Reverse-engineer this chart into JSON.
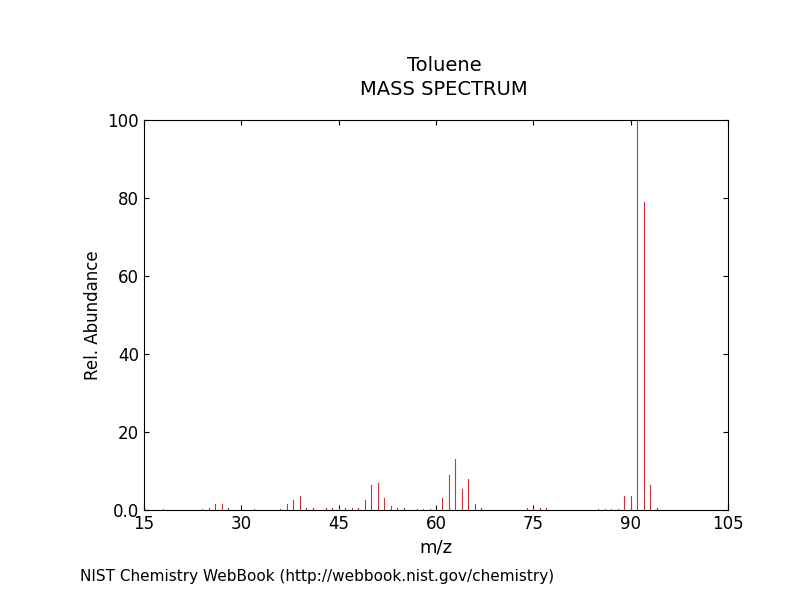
{
  "title_line1": "Toluene",
  "title_line2": "MASS SPECTRUM",
  "xlabel": "m/z",
  "ylabel": "Rel. Abundance",
  "footnote": "NIST Chemistry WebBook (http://webbook.nist.gov/chemistry)",
  "xlim": [
    15,
    105
  ],
  "ylim": [
    0,
    100
  ],
  "xticks": [
    15,
    30,
    45,
    60,
    75,
    90,
    105
  ],
  "yticks": [
    0.0,
    20,
    40,
    60,
    80,
    100
  ],
  "ytick_labels": [
    "0.0",
    "20",
    "40",
    "60",
    "80",
    "100"
  ],
  "background_color": "#ffffff",
  "line_color": "#cc3333",
  "peaks": [
    [
      15,
      0.5
    ],
    [
      18,
      0.3
    ],
    [
      24,
      0.3
    ],
    [
      25,
      0.5
    ],
    [
      26,
      1.5
    ],
    [
      27,
      1.5
    ],
    [
      28,
      0.5
    ],
    [
      32,
      0.3
    ],
    [
      36,
      0.3
    ],
    [
      37,
      1.5
    ],
    [
      38,
      2.5
    ],
    [
      39,
      3.5
    ],
    [
      40,
      0.5
    ],
    [
      41,
      0.5
    ],
    [
      43,
      0.5
    ],
    [
      44,
      0.5
    ],
    [
      45,
      0.5
    ],
    [
      46,
      0.5
    ],
    [
      47,
      0.5
    ],
    [
      48,
      0.5
    ],
    [
      49,
      2.5
    ],
    [
      50,
      6.5
    ],
    [
      51,
      7.0
    ],
    [
      52,
      3.0
    ],
    [
      53,
      1.0
    ],
    [
      54,
      0.5
    ],
    [
      55,
      0.5
    ],
    [
      57,
      0.3
    ],
    [
      58,
      0.3
    ],
    [
      59,
      0.3
    ],
    [
      61,
      3.0
    ],
    [
      62,
      9.0
    ],
    [
      63,
      13.0
    ],
    [
      64,
      5.5
    ],
    [
      65,
      8.0
    ],
    [
      66,
      1.5
    ],
    [
      67,
      0.5
    ],
    [
      74,
      0.5
    ],
    [
      75,
      0.5
    ],
    [
      76,
      0.5
    ],
    [
      77,
      0.5
    ],
    [
      85,
      0.3
    ],
    [
      86,
      0.3
    ],
    [
      87,
      0.3
    ],
    [
      88,
      0.3
    ],
    [
      89,
      3.5
    ],
    [
      90,
      3.5
    ],
    [
      91,
      100.0
    ],
    [
      92,
      79.0
    ],
    [
      93,
      6.5
    ],
    [
      94,
      0.5
    ]
  ]
}
